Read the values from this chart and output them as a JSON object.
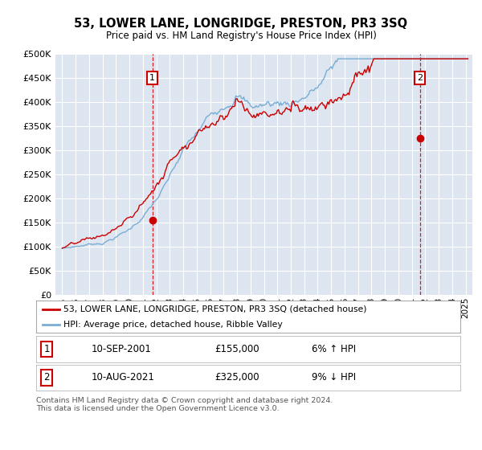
{
  "title": "53, LOWER LANE, LONGRIDGE, PRESTON, PR3 3SQ",
  "subtitle": "Price paid vs. HM Land Registry's House Price Index (HPI)",
  "legend_line1": "53, LOWER LANE, LONGRIDGE, PRESTON, PR3 3SQ (detached house)",
  "legend_line2": "HPI: Average price, detached house, Ribble Valley",
  "annotation1_date": "10-SEP-2001",
  "annotation1_price": 155000,
  "annotation1_hpi": "6% ↑ HPI",
  "annotation2_date": "10-AUG-2021",
  "annotation2_price": 325000,
  "annotation2_hpi": "9% ↓ HPI",
  "footer": "Contains HM Land Registry data © Crown copyright and database right 2024.\nThis data is licensed under the Open Government Licence v3.0.",
  "ylim": [
    0,
    500000
  ],
  "yticks": [
    0,
    50000,
    100000,
    150000,
    200000,
    250000,
    300000,
    350000,
    400000,
    450000,
    500000
  ],
  "bg_color": "#dde5f0",
  "grid_color": "#ffffff",
  "red_color": "#cc0000",
  "blue_color": "#7aadd4",
  "sale1_x": 2001.7,
  "sale2_x": 2021.6
}
